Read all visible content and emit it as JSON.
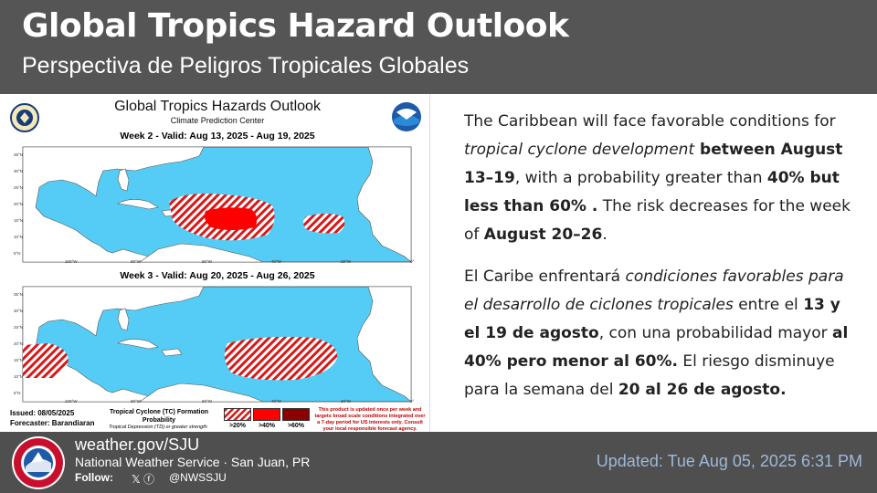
{
  "header": {
    "title": "Global Tropics Hazard Outlook",
    "subtitle": "Perspectiva de Peligros Tropicales Globales"
  },
  "map": {
    "title": "Global Tropics Hazards Outlook",
    "agency": "Climate Prediction Center",
    "week2_label": "Week 2 - Valid: Aug 13, 2025 - Aug 19, 2025",
    "week3_label": "Week 3 - Valid: Aug 20, 2025 - Aug 26, 2025",
    "lat_labels": [
      "35°N",
      "30°N",
      "25°N",
      "20°N",
      "15°N",
      "10°N",
      "5°N"
    ],
    "lon_labels": [
      "100°W",
      "80°W",
      "60°W",
      "40°W",
      "20°W",
      "0°"
    ],
    "issued": "Issued: 08/05/2025",
    "forecaster": "Forecaster: Barandiaran",
    "legend_title": "Tropical Cyclone (TC) Formation Probability",
    "legend_note": "Tropical Depression (TD) or greater strength",
    "legend_levels": [
      ">20%",
      ">40%",
      ">60%"
    ],
    "disclaimer": "This product is updated once per week and targets broad scale conditions integrated over a 7-day period for US interests only. Consult your local responsible forecast agency.",
    "colors": {
      "ocean": "#55ccf5",
      "land": "#ffffff",
      "hazard": "#e01010",
      "hatch": "#d81818",
      "high": "#8b0000"
    }
  },
  "text_en": {
    "p1": "The Caribbean will face favorable conditions for ",
    "p1_em": "tropical cyclone development",
    "p1_b1": " between August 13–19",
    "p1_2": ", with a probability greater than ",
    "p1_b2": "40% but less than 60% .",
    "p1_3": " The risk decreases for the week of ",
    "p1_b3": "August 20–26",
    "p1_4": "."
  },
  "text_es": {
    "p1": "El Caribe enfrentará ",
    "p1_em": "condiciones favorables para el desarrollo de ciclones tropicales",
    "p1_2": " entre el ",
    "p1_b1": "13 y el 19 de agosto",
    "p1_3": ", con una probabilidad mayor ",
    "p1_b2": "al 40% pero menor al 60%.",
    "p1_4": " El riesgo disminuye para la semana del ",
    "p1_b3": "20 al 26 de agosto."
  },
  "footer": {
    "website": "weather.gov/SJU",
    "office": "National Weather Service · San Juan, PR",
    "follow": "Follow:",
    "social_icons": "𝕏 ⓕ",
    "handle": "@NWSSJU",
    "updated": "Updated: Tue Aug 05, 2025 6:31 PM",
    "logo_text": "NATIONAL WEATHER SERVICE"
  }
}
